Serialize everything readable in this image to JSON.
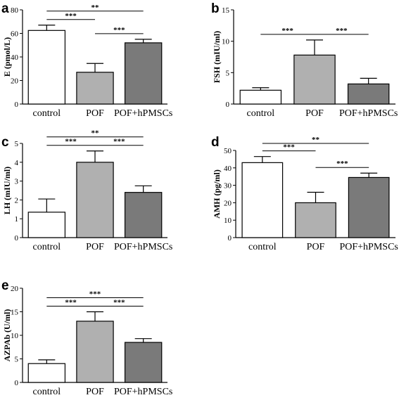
{
  "colors": {
    "control": "#ffffff",
    "POF": "#b0b0b0",
    "POF+hPMSCs": "#7a7a7a",
    "stroke": "#000000"
  },
  "chart_data": [
    {
      "panel": "a",
      "type": "bar",
      "categories": [
        "control",
        "POF",
        "POF+hPMSCs"
      ],
      "values": [
        62.5,
        27,
        52
      ],
      "errors": [
        4.5,
        7.5,
        3
      ],
      "ylabel": "E (pmol/L)",
      "ylim": [
        0,
        80
      ],
      "yticks": [
        0,
        20,
        40,
        60,
        80
      ],
      "significance": [
        {
          "from": 0,
          "to": 1,
          "label": "***"
        },
        {
          "from": 0,
          "to": 2,
          "label": "**"
        },
        {
          "from": 1,
          "to": 2,
          "label": "***"
        }
      ]
    },
    {
      "panel": "b",
      "type": "bar",
      "categories": [
        "control",
        "POF",
        "POF+hPMSCs"
      ],
      "values": [
        2.2,
        7.8,
        3.2
      ],
      "errors": [
        0.4,
        2.4,
        0.9
      ],
      "ylabel": "FSH (mIU/ml)",
      "ylim": [
        0,
        15
      ],
      "yticks": [
        0,
        5,
        10,
        15
      ],
      "significance": [
        {
          "from": 0,
          "to": 1,
          "label": "***"
        },
        {
          "from": 1,
          "to": 2,
          "label": "***"
        }
      ]
    },
    {
      "panel": "c",
      "type": "bar",
      "categories": [
        "control",
        "POF",
        "POF+hPMSCs"
      ],
      "values": [
        1.35,
        4.0,
        2.4
      ],
      "errors": [
        0.7,
        0.6,
        0.35
      ],
      "ylabel": "LH (mIU/ml)",
      "ylim": [
        0,
        5
      ],
      "yticks": [
        0,
        1,
        2,
        3,
        4,
        5
      ],
      "significance": [
        {
          "from": 0,
          "to": 1,
          "label": "***"
        },
        {
          "from": 0,
          "to": 2,
          "label": "**"
        },
        {
          "from": 1,
          "to": 2,
          "label": "***"
        }
      ]
    },
    {
      "panel": "d",
      "type": "bar",
      "categories": [
        "control",
        "POF",
        "POF+hPMSCs"
      ],
      "values": [
        43,
        20,
        34.5
      ],
      "errors": [
        3.5,
        6,
        2.5
      ],
      "ylabel": "AMH (pg/ml)",
      "ylim": [
        0,
        50
      ],
      "yticks": [
        0,
        10,
        20,
        30,
        40,
        50
      ],
      "significance": [
        {
          "from": 0,
          "to": 1,
          "label": "***"
        },
        {
          "from": 0,
          "to": 2,
          "label": "**"
        },
        {
          "from": 1,
          "to": 2,
          "label": "***"
        }
      ]
    },
    {
      "panel": "e",
      "type": "bar",
      "categories": [
        "control",
        "POF",
        "POF+hPMSCs"
      ],
      "values": [
        4.0,
        13.0,
        8.5
      ],
      "errors": [
        0.8,
        2.0,
        0.8
      ],
      "ylabel": "AZPAb (U/ml)",
      "ylim": [
        0,
        20
      ],
      "yticks": [
        0,
        5,
        10,
        15,
        20
      ],
      "significance": [
        {
          "from": 0,
          "to": 1,
          "label": "***"
        },
        {
          "from": 0,
          "to": 2,
          "label": "***"
        },
        {
          "from": 1,
          "to": 2,
          "label": "***"
        }
      ]
    }
  ]
}
